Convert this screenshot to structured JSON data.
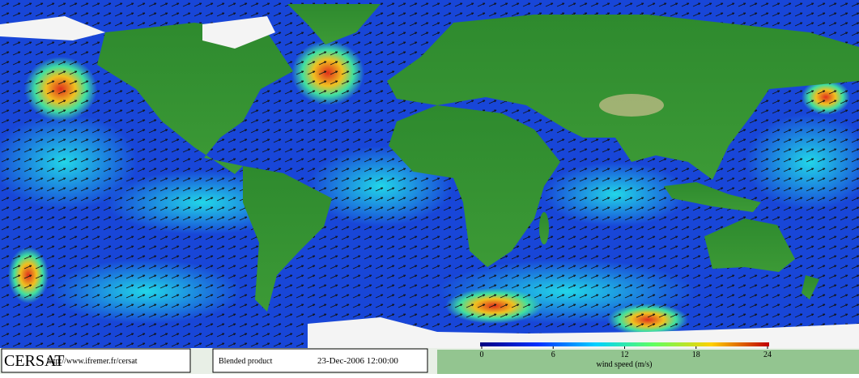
{
  "footer": {
    "logo": "CERSAT",
    "url": "http://www.ifremer.fr/cersat",
    "product": "Blended product",
    "date": "23-Dec-2006 12:00:00"
  },
  "colorbar": {
    "range": [
      0,
      24
    ],
    "ticks": [
      0,
      6,
      12,
      18,
      24
    ],
    "label": "wind speed (m/s)"
  }
}
